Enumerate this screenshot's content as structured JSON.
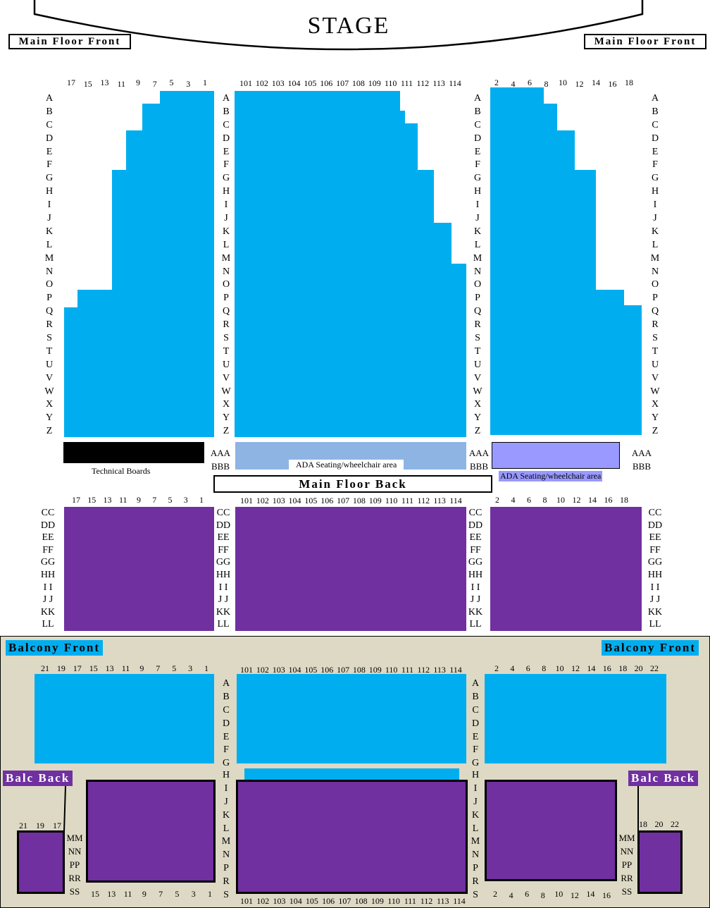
{
  "stage": {
    "label": "STAGE"
  },
  "main_front": {
    "label_left": "Main Floor Front",
    "label_right": "Main Floor Front",
    "left_seats": [
      "17",
      "15",
      "13",
      "11",
      "9",
      "7",
      "5",
      "3",
      "1"
    ],
    "center_seats": [
      "101",
      "102",
      "103",
      "104",
      "105",
      "106",
      "107",
      "108",
      "109",
      "110",
      "111",
      "112",
      "113",
      "114"
    ],
    "right_seats": [
      "2",
      "4",
      "6",
      "8",
      "10",
      "12",
      "14",
      "16",
      "18"
    ],
    "rows": [
      "A",
      "B",
      "C",
      "D",
      "E",
      "F",
      "G",
      "H",
      "I",
      "J",
      "K",
      "L",
      "M",
      "N",
      "O",
      "P",
      "Q",
      "R",
      "S",
      "T",
      "U",
      "V",
      "W",
      "X",
      "Y",
      "Z"
    ],
    "extra_rows": [
      "AAA",
      "BBB"
    ],
    "technical_boards": "Technical Boards",
    "ada_center": "ADA Seating/wheelchair area",
    "ada_right": "ADA Seating/wheelchair area",
    "colors": {
      "seats": "#00aeef",
      "ada_center": "#8eb4e3",
      "ada_right": "#9999ff",
      "tech": "#000000"
    }
  },
  "main_back": {
    "label": "Main Floor Back",
    "left_seats": [
      "17",
      "15",
      "13",
      "11",
      "9",
      "7",
      "5",
      "3",
      "1"
    ],
    "center_seats": [
      "101",
      "102",
      "103",
      "104",
      "105",
      "106",
      "107",
      "108",
      "109",
      "110",
      "111",
      "112",
      "113",
      "114"
    ],
    "right_seats": [
      "2",
      "4",
      "6",
      "8",
      "10",
      "12",
      "14",
      "16",
      "18"
    ],
    "rows": [
      "CC",
      "DD",
      "EE",
      "FF",
      "GG",
      "HH",
      "I I",
      "J J",
      "KK",
      "LL"
    ],
    "color": "#7030a0"
  },
  "balcony": {
    "front_label_left": "Balcony Front",
    "front_label_right": "Balcony Front",
    "back_label_left": "Balc Back",
    "back_label_right": "Balc Back",
    "front_left_seats": [
      "21",
      "19",
      "17",
      "15",
      "13",
      "11",
      "9",
      "7",
      "5",
      "3",
      "1"
    ],
    "front_center_seats": [
      "101",
      "102",
      "103",
      "104",
      "105",
      "106",
      "107",
      "108",
      "109",
      "110",
      "111",
      "112",
      "113",
      "114"
    ],
    "front_right_seats": [
      "2",
      "4",
      "6",
      "8",
      "10",
      "12",
      "14",
      "16",
      "18",
      "20",
      "22"
    ],
    "front_rows": [
      "A",
      "B",
      "C",
      "D",
      "E",
      "F",
      "G"
    ],
    "back_rows_center": [
      "H",
      "I",
      "J",
      "K",
      "L",
      "M",
      "N",
      "P",
      "R",
      "S"
    ],
    "back_rows_side": [
      "MM",
      "NN",
      "PP",
      "RR",
      "SS"
    ],
    "back_far_left_seats": [
      "21",
      "19",
      "17"
    ],
    "back_far_right_seats": [
      "18",
      "20",
      "22"
    ],
    "back_left_seats": [
      "15",
      "13",
      "11",
      "9",
      "7",
      "5",
      "3",
      "1"
    ],
    "back_center_seats": [
      "101",
      "102",
      "103",
      "104",
      "105",
      "106",
      "107",
      "108",
      "109",
      "110",
      "111",
      "112",
      "113",
      "114"
    ],
    "back_right_seats": [
      "2",
      "4",
      "6",
      "8",
      "10",
      "12",
      "14",
      "16"
    ],
    "colors": {
      "background": "#ddd9c4",
      "front": "#00aeef",
      "back": "#7030a0"
    }
  }
}
